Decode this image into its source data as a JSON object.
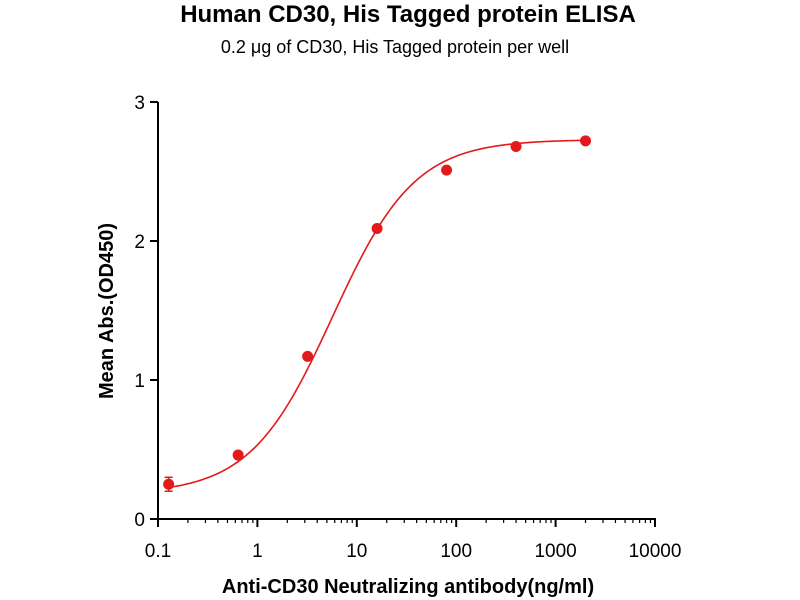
{
  "chart_data": {
    "type": "scatter",
    "title": "Human CD30, His Tagged protein ELISA",
    "subtitle": "0.2 μg of CD30, His Tagged protein per well",
    "xlabel": "Anti-CD30 Neutralizing antibody(ng/ml)",
    "ylabel": "Mean Abs.(OD450)",
    "x_scale": "log",
    "xlim": [
      0.1,
      10000
    ],
    "ylim": [
      0,
      3
    ],
    "x_ticks": [
      {
        "value": 0.1,
        "label": "0.1"
      },
      {
        "value": 1,
        "label": "1"
      },
      {
        "value": 10,
        "label": "10"
      },
      {
        "value": 100,
        "label": "100"
      },
      {
        "value": 1000,
        "label": "1000"
      },
      {
        "value": 10000,
        "label": "10000"
      }
    ],
    "y_ticks": [
      {
        "value": 0,
        "label": "0"
      },
      {
        "value": 1,
        "label": "1"
      },
      {
        "value": 2,
        "label": "2"
      },
      {
        "value": 3,
        "label": "3"
      }
    ],
    "grid": false,
    "series": [
      {
        "color": "#e31a1c",
        "x": [
          0.128,
          0.64,
          3.2,
          16,
          80,
          400,
          2000
        ],
        "y": [
          0.25,
          0.46,
          1.17,
          2.09,
          2.51,
          2.68,
          2.72
        ],
        "error": [
          0.05,
          0.01,
          0.01,
          0.01,
          0.01,
          0.01,
          0.01
        ],
        "fit": "four-parameter logistic",
        "fit_params": {
          "bottom": 0.18,
          "top": 2.73,
          "ec50": 5.7,
          "hill": 1.05
        }
      }
    ]
  }
}
